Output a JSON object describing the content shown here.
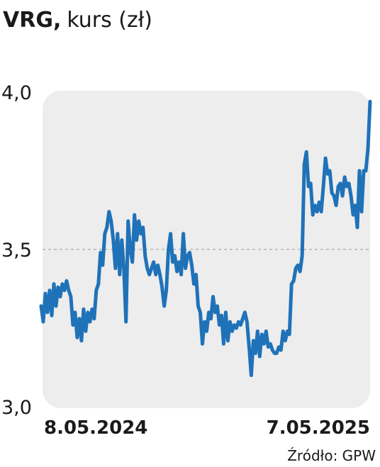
{
  "chart_data": {
    "type": "line",
    "title": {
      "ticker": "VRG,",
      "label": "kurs (zł)"
    },
    "source": "Źródło: GPW",
    "categories": [
      "8.05.2024",
      null,
      null,
      null,
      null,
      null,
      null,
      null,
      null,
      null,
      null,
      null,
      null,
      null,
      null,
      null,
      null,
      null,
      null,
      null,
      null,
      null,
      null,
      null,
      null,
      null,
      null,
      null,
      null,
      null,
      null,
      null,
      null,
      null,
      null,
      null,
      null,
      null,
      null,
      null,
      null,
      null,
      null,
      null,
      null,
      null,
      null,
      null,
      null,
      null,
      null,
      null,
      null,
      null,
      null,
      null,
      null,
      null,
      null,
      null,
      null,
      null,
      null,
      null,
      null,
      null,
      null,
      null,
      null,
      null,
      null,
      null,
      null,
      null,
      null,
      null,
      null,
      null,
      null,
      null,
      null,
      null,
      null,
      null,
      null,
      null,
      null,
      null,
      null,
      null,
      null,
      null,
      null,
      null,
      null,
      null,
      null,
      null,
      null,
      null,
      null,
      null,
      null,
      null,
      null,
      null,
      null,
      null,
      null,
      null,
      null,
      null,
      null,
      null,
      null,
      null,
      null,
      null,
      null,
      null,
      null,
      null,
      null,
      null,
      null,
      null,
      null,
      null,
      null,
      null,
      null,
      null,
      null,
      null,
      null,
      null,
      null,
      null,
      null,
      null,
      null,
      null,
      null,
      null,
      null,
      null,
      null,
      null,
      null,
      null,
      null,
      null,
      null,
      null,
      null,
      "7.05.2025"
    ],
    "series": [
      {
        "color": "#1f72b8",
        "values": [
          3.32,
          3.27,
          3.36,
          3.3,
          3.37,
          3.29,
          3.39,
          3.32,
          3.38,
          3.35,
          3.39,
          3.37,
          3.4,
          3.37,
          3.35,
          3.26,
          3.3,
          3.22,
          3.28,
          3.21,
          3.31,
          3.24,
          3.3,
          3.27,
          3.31,
          3.28,
          3.37,
          3.39,
          3.49,
          3.45,
          3.55,
          3.57,
          3.62,
          3.59,
          3.53,
          3.44,
          3.55,
          3.42,
          3.53,
          3.44,
          3.27,
          3.59,
          3.5,
          3.46,
          3.61,
          3.53,
          3.59,
          3.55,
          3.57,
          3.48,
          3.44,
          3.42,
          3.44,
          3.46,
          3.42,
          3.45,
          3.42,
          3.38,
          3.32,
          3.37,
          3.5,
          3.55,
          3.46,
          3.48,
          3.43,
          3.46,
          3.42,
          3.55,
          3.44,
          3.48,
          3.49,
          3.45,
          3.39,
          3.42,
          3.32,
          3.3,
          3.2,
          3.27,
          3.24,
          3.3,
          3.28,
          3.35,
          3.3,
          3.32,
          3.26,
          3.29,
          3.2,
          3.3,
          3.21,
          3.27,
          3.24,
          3.26,
          3.25,
          3.27,
          3.26,
          3.28,
          3.3,
          3.27,
          3.19,
          3.1,
          3.21,
          3.17,
          3.24,
          3.16,
          3.23,
          3.2,
          3.24,
          3.19,
          3.2,
          3.18,
          3.17,
          3.17,
          3.19,
          3.18,
          3.24,
          3.21,
          3.24,
          3.23,
          3.39,
          3.4,
          3.44,
          3.45,
          3.43,
          3.48,
          3.77,
          3.81,
          3.7,
          3.71,
          3.61,
          3.64,
          3.62,
          3.65,
          3.62,
          3.7,
          3.79,
          3.74,
          3.75,
          3.68,
          3.67,
          3.64,
          3.7,
          3.71,
          3.67,
          3.73,
          3.7,
          3.71,
          3.67,
          3.61,
          3.64,
          3.57,
          3.75,
          3.62,
          3.75,
          3.75,
          3.82,
          3.97
        ]
      }
    ],
    "ylim": [
      3.0,
      4.0
    ],
    "yticks": [
      {
        "value": 3.0,
        "label": "3,0"
      },
      {
        "value": 3.5,
        "label": "3,5"
      },
      {
        "value": 4.0,
        "label": "4,0"
      }
    ],
    "grid": true
  }
}
